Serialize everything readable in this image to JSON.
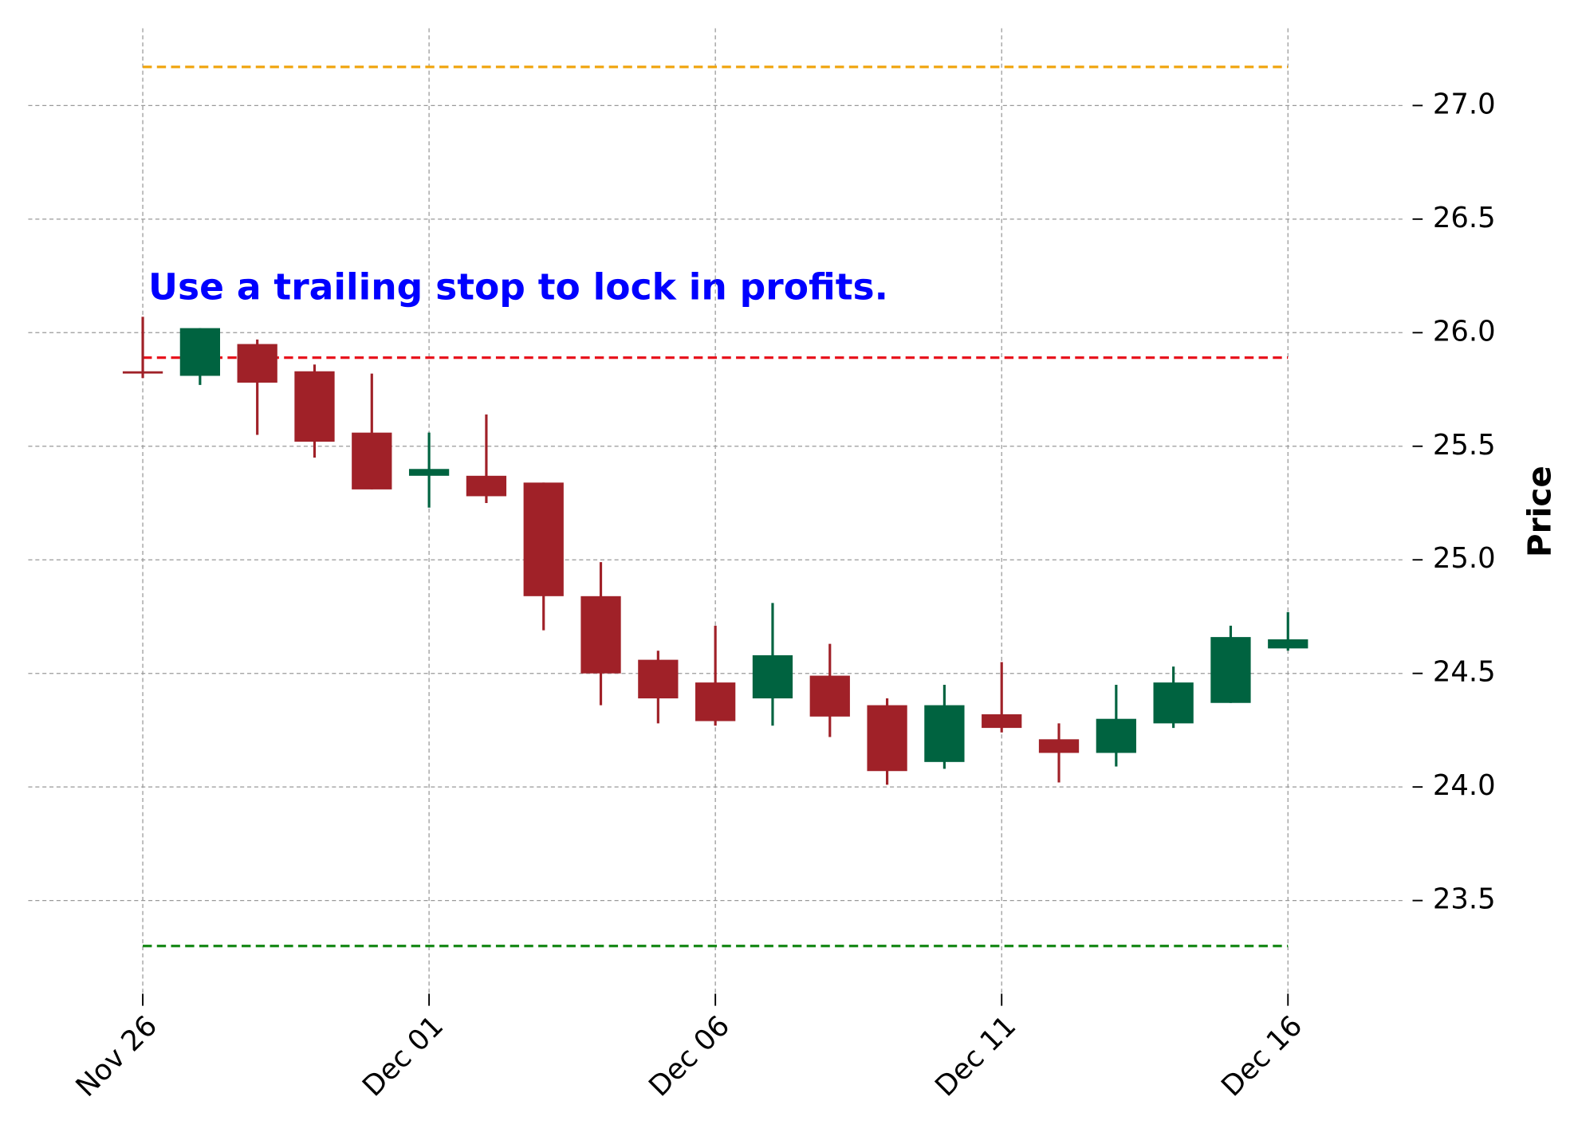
{
  "chart_data": {
    "type": "candlestick",
    "annotation": "Use a trailing stop to lock in profits.",
    "annotation_color": "#0000ff",
    "ylabel": "Price",
    "categories": [
      "Nov 26",
      null,
      null,
      null,
      null,
      "Dec 01",
      null,
      null,
      null,
      null,
      "Dec 06",
      null,
      null,
      null,
      null,
      "Dec 11",
      null,
      null,
      null,
      null,
      "Dec 16"
    ],
    "open": [
      25.83,
      25.81,
      25.95,
      25.83,
      25.56,
      25.37,
      25.37,
      25.34,
      24.84,
      24.56,
      24.46,
      24.39,
      24.49,
      24.36,
      24.11,
      24.32,
      24.21,
      24.15,
      24.28,
      24.37,
      24.61
    ],
    "high": [
      26.07,
      26.02,
      25.97,
      25.86,
      25.82,
      25.56,
      25.64,
      25.34,
      24.99,
      24.6,
      24.71,
      24.81,
      24.63,
      24.39,
      24.45,
      24.55,
      24.28,
      24.45,
      24.53,
      24.71,
      24.77
    ],
    "low": [
      25.8,
      25.77,
      25.55,
      25.45,
      25.31,
      25.23,
      25.25,
      24.69,
      24.36,
      24.28,
      24.27,
      24.27,
      24.22,
      24.01,
      24.08,
      24.24,
      24.02,
      24.09,
      24.26,
      24.37,
      24.6
    ],
    "close": [
      25.82,
      26.02,
      25.78,
      25.52,
      25.31,
      25.4,
      25.28,
      24.84,
      24.5,
      24.39,
      24.29,
      24.58,
      24.31,
      24.07,
      24.36,
      24.26,
      24.15,
      24.3,
      24.46,
      24.66,
      24.65
    ],
    "up_color": "#006340",
    "down_color": "#a02128",
    "hlines": [
      {
        "value": 27.17,
        "color": "#f0a30a"
      },
      {
        "value": 25.89,
        "color": "#e8141e"
      },
      {
        "value": 23.3,
        "color": "#1a8a1a"
      }
    ],
    "xlim": [
      -2,
      22
    ],
    "ylim": [
      23.09,
      27.34
    ],
    "yticks": [
      23.5,
      {
        "value": 24,
        "label": "24.0"
      },
      24.5,
      {
        "value": 25,
        "label": "25.0"
      },
      25.5,
      {
        "value": 26,
        "label": "26.0"
      },
      26.5,
      {
        "value": 27,
        "label": "27.0"
      }
    ],
    "grid": true
  }
}
